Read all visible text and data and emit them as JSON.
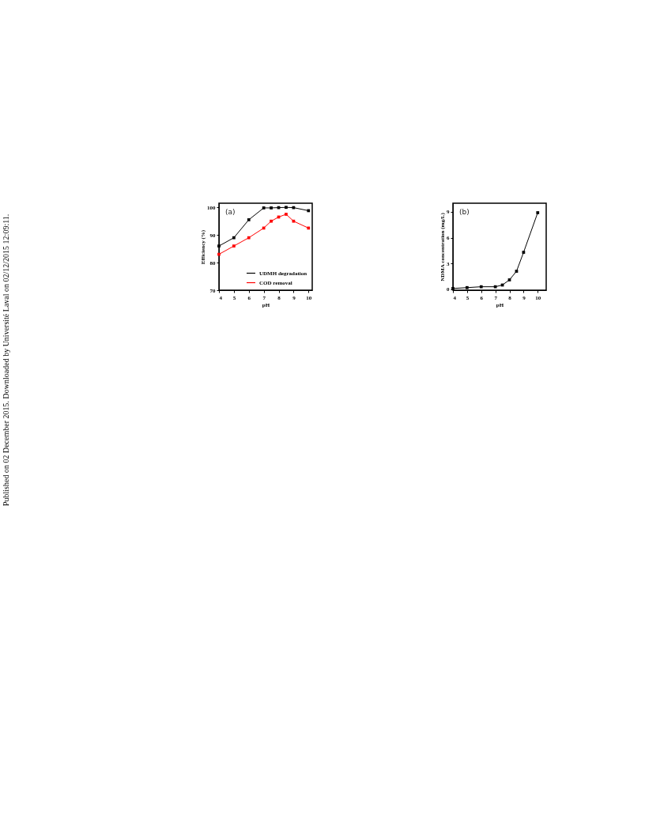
{
  "chart_data": [
    {
      "type": "line",
      "title": "(a)",
      "xlabel": "pH",
      "ylabel": "Efficiency (%)",
      "x": [
        4,
        5,
        6,
        7,
        7.5,
        8,
        8.5,
        9,
        10
      ],
      "xlim": [
        4,
        10.25
      ],
      "xticks": [
        4,
        5,
        6,
        7,
        8,
        9,
        10
      ],
      "ylim": [
        70,
        101.5
      ],
      "yticks": [
        70,
        80,
        90,
        100
      ],
      "marker": "square",
      "legend": "bottom right",
      "grid": false,
      "series": [
        {
          "name": "UDMH degradation",
          "color": "#000000",
          "values": [
            86,
            89,
            95.5,
            99.8,
            99.8,
            99.9,
            100,
            99.9,
            98.8
          ]
        },
        {
          "name": "COD removal",
          "color": "#ff0000",
          "values": [
            83,
            86,
            89,
            92.5,
            95,
            96.5,
            97.5,
            95,
            92.5
          ]
        }
      ],
      "annotations": [
        "Published on 02 December 2015. Downloaded by Université Laval on 02/12/2015 12:09:11."
      ]
    },
    {
      "type": "line",
      "title": "(b)",
      "xlabel": "pH",
      "ylabel": "NDMA concentration (mg/L)",
      "x": [
        4,
        5,
        6,
        7,
        7.5,
        8,
        8.5,
        9,
        10
      ],
      "xlim": [
        4,
        10.6
      ],
      "xticks": [
        4,
        5,
        6,
        7,
        8,
        9,
        10
      ],
      "ylim": [
        -0.1,
        10
      ],
      "yticks": [
        0,
        3,
        6,
        9
      ],
      "marker": "square",
      "legend": false,
      "grid": false,
      "series": [
        {
          "color": "#000000",
          "values": [
            0.1,
            0.2,
            0.3,
            0.3,
            0.5,
            1.1,
            2.1,
            4.3,
            8.9
          ]
        }
      ]
    }
  ]
}
